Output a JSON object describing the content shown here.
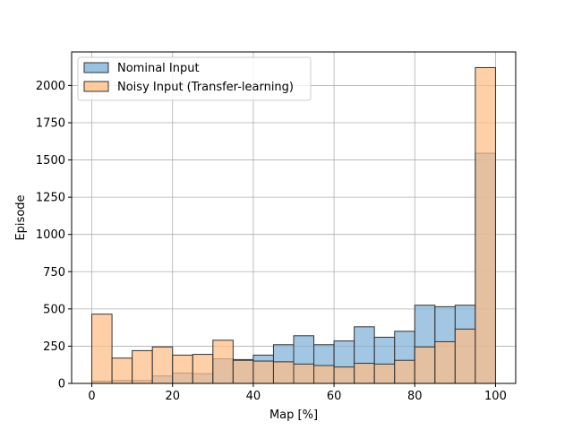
{
  "chart_data": {
    "type": "bar",
    "subtype": "overlaid-histogram",
    "title": "",
    "xlabel": "Map [%]",
    "ylabel": "Episode",
    "xlim": [
      -5,
      105
    ],
    "ylim": [
      0,
      2225
    ],
    "xticks": [
      0,
      20,
      40,
      60,
      80,
      100
    ],
    "yticks": [
      0,
      250,
      500,
      750,
      1000,
      1250,
      1500,
      1750,
      2000
    ],
    "grid": true,
    "legend_position": "upper-left",
    "bin_edges": [
      0,
      5,
      10,
      15,
      20,
      25,
      30,
      35,
      40,
      45,
      50,
      55,
      60,
      65,
      70,
      75,
      80,
      85,
      90,
      95,
      100
    ],
    "series": [
      {
        "name": "Nominal Input",
        "color": "#7fb1d8",
        "values": [
          15,
          20,
          20,
          50,
          70,
          65,
          165,
          160,
          190,
          260,
          320,
          260,
          285,
          380,
          310,
          350,
          525,
          515,
          525,
          1545
        ]
      },
      {
        "name": "Noisy Input (Transfer-learning)",
        "color": "#ffbe86",
        "values": [
          465,
          170,
          220,
          245,
          190,
          195,
          290,
          155,
          150,
          145,
          130,
          120,
          110,
          135,
          130,
          155,
          245,
          280,
          365,
          2120
        ]
      }
    ]
  }
}
